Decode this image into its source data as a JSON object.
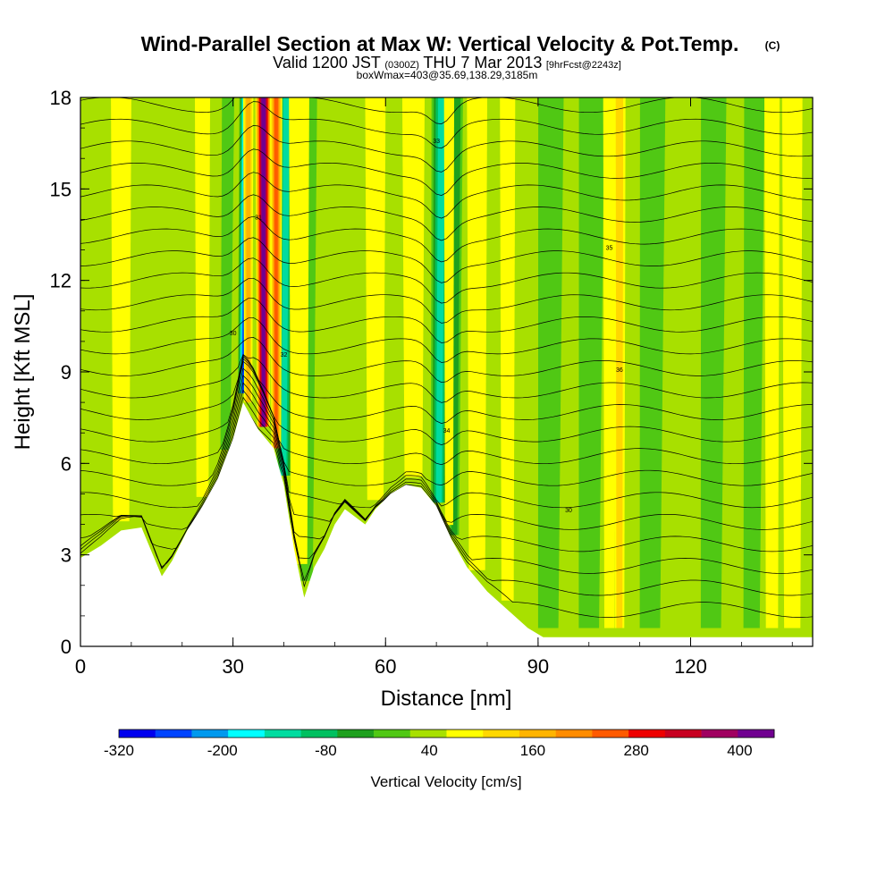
{
  "chart_data": {
    "type": "heatmap",
    "title": "Wind-Parallel Section at Max W: Vertical Velocity & Pot.Temp.",
    "title_mark": "(C)",
    "subtitle_parts": [
      "Valid 1200 JST",
      "(0300Z)",
      "THU 7 Mar 2013",
      "[9hrFcst@2243z]"
    ],
    "subtitle2": "boxWmax=403@35.69,138.29,3185m",
    "xlabel": "Distance [nm]",
    "ylabel": "Height [Kft MSL]",
    "xlim": [
      0,
      144
    ],
    "ylim": [
      0,
      18
    ],
    "xticks": [
      0,
      30,
      60,
      90,
      120
    ],
    "yticks": [
      0,
      3,
      6,
      9,
      12,
      15,
      18
    ],
    "colorbar": {
      "label": "Vertical Velocity [cm/s]",
      "min": -320,
      "max": 440,
      "step": 40,
      "tick_values": [
        -320,
        -200,
        -80,
        40,
        160,
        280,
        400
      ],
      "colors": [
        "#0000ee",
        "#0044ff",
        "#0099ee",
        "#00ffff",
        "#00dca0",
        "#00c060",
        "#1ea01e",
        "#50c814",
        "#a8e000",
        "#ffff00",
        "#ffd800",
        "#ffb400",
        "#ff8c00",
        "#ff5a00",
        "#ee0000",
        "#c80020",
        "#a00060",
        "#700090"
      ]
    },
    "terrain": [
      [
        0,
        2.9
      ],
      [
        4,
        3.3
      ],
      [
        8,
        3.8
      ],
      [
        12,
        3.9
      ],
      [
        14,
        3.1
      ],
      [
        16,
        2.3
      ],
      [
        18,
        2.8
      ],
      [
        21,
        3.8
      ],
      [
        24,
        4.6
      ],
      [
        27,
        5.5
      ],
      [
        30,
        6.8
      ],
      [
        32,
        8.0
      ],
      [
        35,
        7.1
      ],
      [
        38,
        6.5
      ],
      [
        40,
        5.3
      ],
      [
        42,
        3.2
      ],
      [
        44,
        1.6
      ],
      [
        46,
        2.6
      ],
      [
        48,
        3.2
      ],
      [
        50,
        4.0
      ],
      [
        52,
        4.5
      ],
      [
        56,
        4.0
      ],
      [
        58,
        4.5
      ],
      [
        61,
        5.0
      ],
      [
        64,
        5.3
      ],
      [
        67,
        5.2
      ],
      [
        70,
        4.6
      ],
      [
        73,
        3.5
      ],
      [
        76,
        2.6
      ],
      [
        80,
        1.8
      ],
      [
        84,
        1.2
      ],
      [
        88,
        0.6
      ],
      [
        91,
        0.3
      ],
      [
        144,
        0.3
      ]
    ],
    "updrafts": [
      {
        "x": 36.0,
        "width": 1.6,
        "w": 403
      },
      {
        "x": 38.5,
        "width": 1.2,
        "w": 200
      },
      {
        "x": 33.0,
        "width": 1.0,
        "w": 120
      },
      {
        "x": 24.0,
        "width": 1.5,
        "w": 60
      },
      {
        "x": 43.0,
        "width": 2.0,
        "w": 40
      },
      {
        "x": 58.0,
        "width": 2.0,
        "w": 40
      },
      {
        "x": 65.5,
        "width": 2.2,
        "w": 70
      },
      {
        "x": 72.5,
        "width": 1.0,
        "w": 60
      },
      {
        "x": 78.0,
        "width": 2.0,
        "w": 60
      },
      {
        "x": 84.0,
        "width": 1.5,
        "w": 40
      },
      {
        "x": 106.0,
        "width": 1.2,
        "w": 80
      },
      {
        "x": 104.0,
        "width": 1.2,
        "w": 40
      },
      {
        "x": 136.0,
        "width": 1.5,
        "w": 40
      },
      {
        "x": 8.0,
        "width": 2.0,
        "w": 30
      },
      {
        "x": 140.0,
        "width": 2.0,
        "w": 30
      }
    ],
    "downdrafts": [
      {
        "x": 32.0,
        "width": 1.3,
        "w": -300
      },
      {
        "x": 40.0,
        "width": 1.8,
        "w": -180
      },
      {
        "x": 70.5,
        "width": 2.0,
        "w": -160
      },
      {
        "x": 73.5,
        "width": 1.2,
        "w": -100
      },
      {
        "x": 28.5,
        "width": 1.2,
        "w": -40
      },
      {
        "x": 44.5,
        "width": 1.5,
        "w": -30
      },
      {
        "x": 92.0,
        "width": 2.5,
        "w": -30
      },
      {
        "x": 100.0,
        "width": 2.5,
        "w": -40
      },
      {
        "x": 112.0,
        "width": 2.5,
        "w": -30
      },
      {
        "x": 124.0,
        "width": 2.5,
        "w": -30
      },
      {
        "x": 132.0,
        "width": 2.0,
        "w": -30
      }
    ],
    "theta_levels": 24,
    "contour_labels": [
      "30",
      "31",
      "32",
      "33",
      "34",
      "35",
      "36"
    ]
  }
}
